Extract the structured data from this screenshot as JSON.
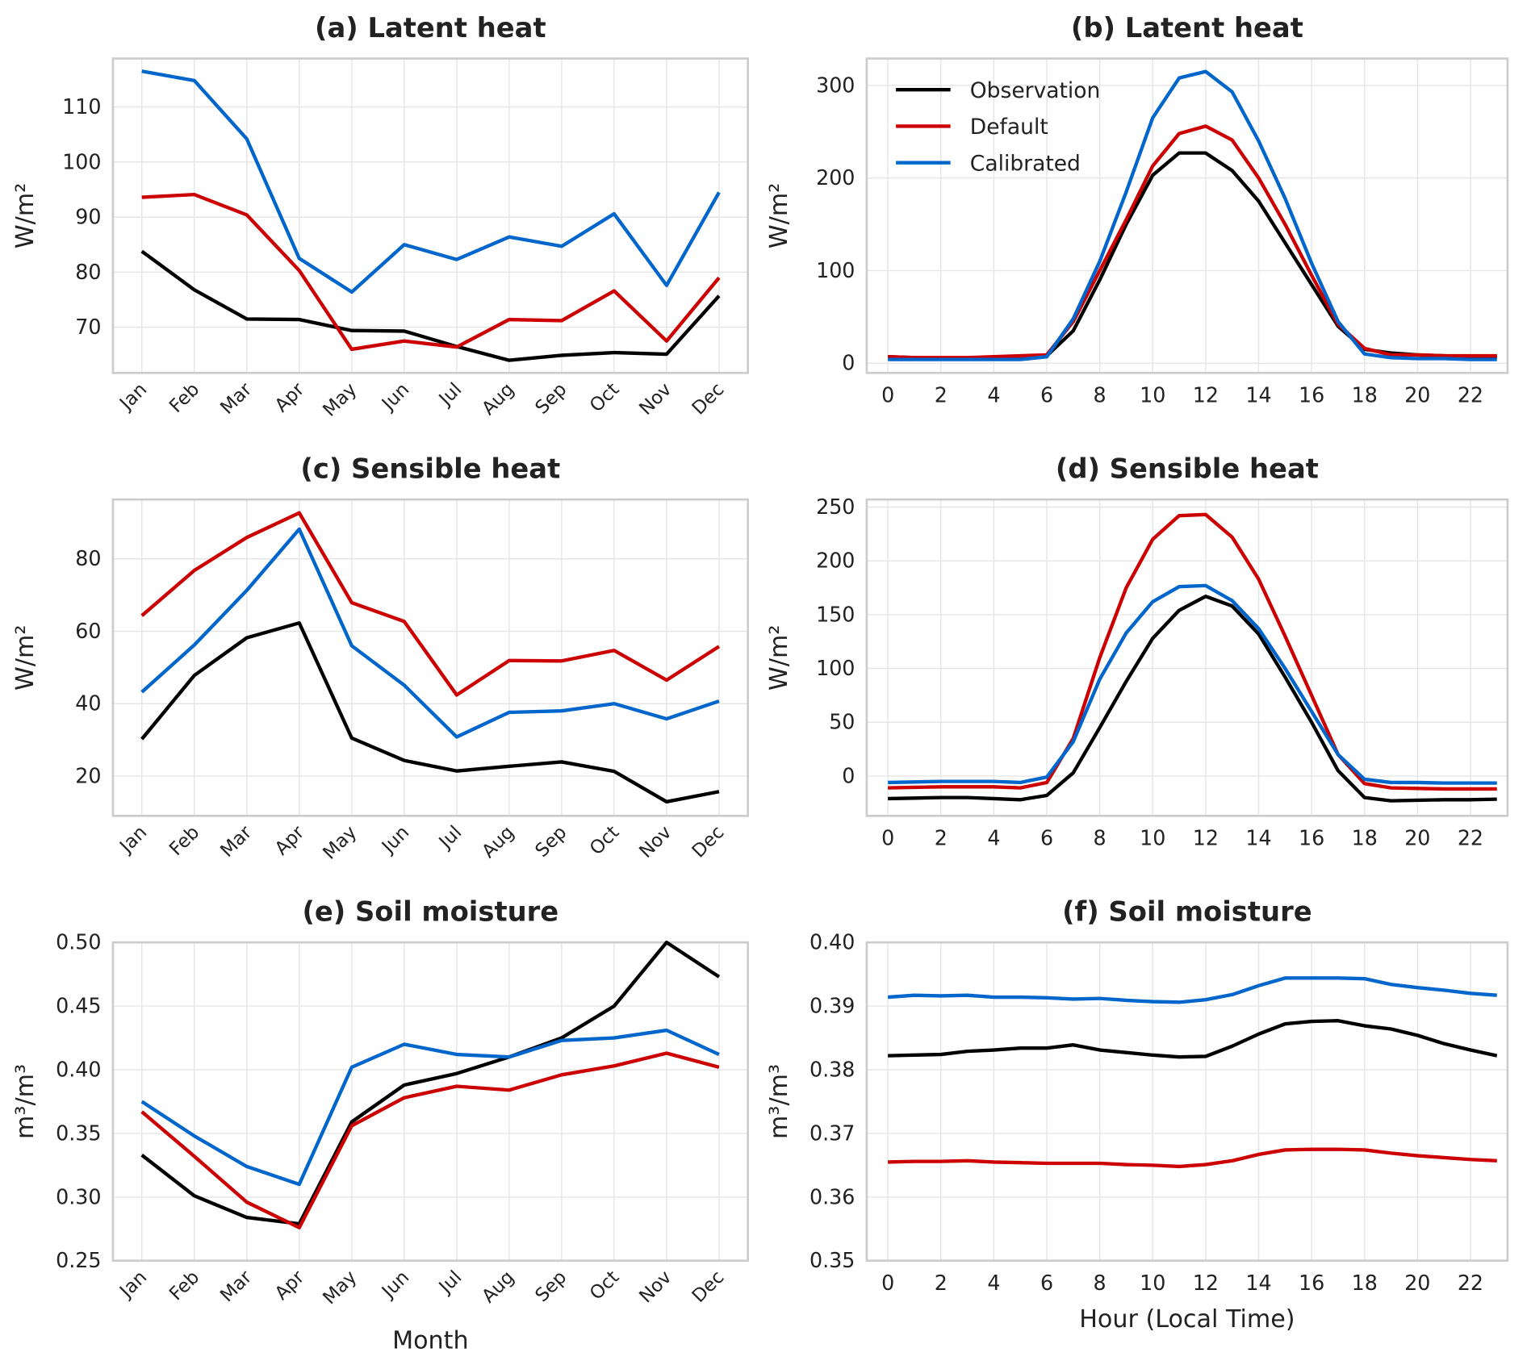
{
  "chart_data": [
    {
      "type": "line",
      "title": "(a) Latent heat",
      "ylabel": "W/m²",
      "categories": [
        "Jan",
        "Feb",
        "Mar",
        "Apr",
        "May",
        "Jun",
        "Jul",
        "Aug",
        "Sep",
        "Oct",
        "Nov",
        "Dec"
      ],
      "ylim": [
        61.7,
        118.8
      ],
      "yticks": [
        70,
        80,
        90,
        100,
        110
      ],
      "grid": true,
      "series": [
        {
          "color": "#000000",
          "values": [
            83.8,
            76.8,
            71.5,
            71.4,
            69.4,
            69.3,
            66.5,
            64.0,
            64.9,
            65.4,
            65.1,
            75.7
          ]
        },
        {
          "color": "#cc0000",
          "values": [
            93.6,
            94.1,
            90.4,
            80.3,
            66.0,
            67.5,
            66.4,
            71.4,
            71.2,
            76.6,
            67.5,
            79.0
          ]
        },
        {
          "color": "#0066cc",
          "values": [
            116.5,
            114.8,
            104.2,
            82.5,
            76.4,
            85.0,
            82.3,
            86.4,
            84.7,
            90.6,
            77.6,
            94.5
          ]
        }
      ]
    },
    {
      "type": "line",
      "title": "(b) Latent heat",
      "ylabel": "W/m²",
      "x": [
        0,
        1,
        2,
        3,
        4,
        5,
        6,
        7,
        8,
        9,
        10,
        11,
        12,
        13,
        14,
        15,
        16,
        17,
        18,
        19,
        20,
        21,
        22,
        23
      ],
      "xlim": [
        -0.8,
        23.4
      ],
      "xticks": [
        0,
        2,
        4,
        6,
        8,
        10,
        12,
        14,
        16,
        18,
        20,
        22
      ],
      "ylim": [
        -10.5,
        329
      ],
      "yticks": [
        0,
        100,
        200,
        300
      ],
      "grid": true,
      "legend": "upper left",
      "series": [
        {
          "name": "Observation",
          "color": "#000000",
          "values": [
            7,
            6,
            5,
            5,
            6,
            7,
            8,
            35,
            90,
            150,
            203,
            227,
            227,
            208,
            175,
            130,
            85,
            40,
            15,
            11,
            9,
            8,
            7,
            7
          ]
        },
        {
          "name": "Default",
          "color": "#cc0000",
          "values": [
            7,
            6,
            6,
            6,
            7,
            8,
            9,
            45,
            100,
            155,
            213,
            248,
            256,
            241,
            200,
            150,
            95,
            42,
            16,
            9,
            9,
            8,
            8,
            8
          ]
        },
        {
          "name": "Calibrated",
          "color": "#0066cc",
          "values": [
            4,
            4,
            4,
            4,
            4,
            4,
            7,
            48,
            110,
            185,
            265,
            308,
            315,
            293,
            240,
            178,
            108,
            45,
            10,
            6,
            5,
            5,
            4,
            4
          ]
        }
      ]
    },
    {
      "type": "line",
      "title": "(c) Sensible heat",
      "ylabel": "W/m²",
      "categories": [
        "Jan",
        "Feb",
        "Mar",
        "Apr",
        "May",
        "Jun",
        "Jul",
        "Aug",
        "Sep",
        "Oct",
        "Nov",
        "Dec"
      ],
      "ylim": [
        9,
        96.4
      ],
      "yticks": [
        20,
        40,
        60,
        80
      ],
      "grid": true,
      "series": [
        {
          "color": "#000000",
          "values": [
            30.2,
            47.8,
            58.2,
            62.3,
            30.5,
            24.3,
            21.4,
            22.7,
            23.9,
            21.3,
            12.9,
            15.7
          ]
        },
        {
          "color": "#cc0000",
          "values": [
            64.3,
            76.8,
            85.9,
            92.7,
            67.9,
            62.7,
            42.4,
            51.9,
            51.8,
            54.7,
            46.5,
            55.8
          ]
        },
        {
          "color": "#0066cc",
          "values": [
            43.2,
            56.2,
            71.3,
            88.2,
            56.0,
            45.1,
            30.8,
            37.6,
            38.0,
            40.0,
            35.8,
            40.7
          ]
        }
      ]
    },
    {
      "type": "line",
      "title": "(d) Sensible heat",
      "ylabel": "W/m²",
      "x": [
        0,
        1,
        2,
        3,
        4,
        5,
        6,
        7,
        8,
        9,
        10,
        11,
        12,
        13,
        14,
        15,
        16,
        17,
        18,
        19,
        20,
        21,
        22,
        23
      ],
      "xlim": [
        -0.8,
        23.4
      ],
      "xticks": [
        0,
        2,
        4,
        6,
        8,
        10,
        12,
        14,
        16,
        18,
        20,
        22
      ],
      "ylim": [
        -37,
        257
      ],
      "yticks": [
        0,
        50,
        100,
        150,
        200,
        250
      ],
      "grid": true,
      "series": [
        {
          "color": "#000000",
          "values": [
            -21,
            -20.5,
            -20,
            -20,
            -21,
            -22,
            -18,
            3,
            45,
            88,
            128,
            154,
            167,
            158,
            132,
            92,
            50,
            5,
            -20,
            -23,
            -22.5,
            -22,
            -22,
            -21.5
          ]
        },
        {
          "color": "#cc0000",
          "values": [
            -11,
            -10.5,
            -10,
            -10,
            -10,
            -11,
            -6,
            35,
            110,
            175,
            220,
            242,
            243,
            222,
            183,
            130,
            75,
            20,
            -7,
            -11,
            -11.5,
            -12,
            -12,
            -12
          ]
        },
        {
          "color": "#0066cc",
          "values": [
            -6,
            -5.5,
            -5,
            -5,
            -5,
            -6,
            -1,
            32,
            90,
            133,
            162,
            176,
            177,
            163,
            137,
            100,
            60,
            20,
            -3,
            -6,
            -6,
            -6.5,
            -6.5,
            -6.5
          ]
        }
      ]
    },
    {
      "type": "line",
      "title": "(e) Soil moisture",
      "ylabel": "m³/m³",
      "xlabel": "Month",
      "categories": [
        "Jan",
        "Feb",
        "Mar",
        "Apr",
        "May",
        "Jun",
        "Jul",
        "Aug",
        "Sep",
        "Oct",
        "Nov",
        "Dec"
      ],
      "ylim": [
        0.25,
        0.5
      ],
      "yticks": [
        {
          "value": 0.25,
          "label": "0.25"
        },
        {
          "value": 0.3,
          "label": "0.30"
        },
        {
          "value": 0.35,
          "label": "0.35"
        },
        {
          "value": 0.4,
          "label": "0.40"
        },
        {
          "value": 0.45,
          "label": "0.45"
        },
        {
          "value": 0.5,
          "label": "0.50"
        }
      ],
      "grid": true,
      "series": [
        {
          "color": "#000000",
          "values": [
            0.333,
            0.301,
            0.284,
            0.279,
            0.359,
            0.388,
            0.397,
            0.41,
            0.425,
            0.45,
            0.5,
            0.473
          ]
        },
        {
          "color": "#cc0000",
          "values": [
            0.367,
            0.332,
            0.296,
            0.276,
            0.356,
            0.378,
            0.387,
            0.384,
            0.396,
            0.403,
            0.413,
            0.402
          ]
        },
        {
          "color": "#0066cc",
          "values": [
            0.375,
            0.348,
            0.324,
            0.31,
            0.402,
            0.42,
            0.412,
            0.41,
            0.423,
            0.425,
            0.431,
            0.412
          ]
        }
      ]
    },
    {
      "type": "line",
      "title": "(f) Soil moisture",
      "ylabel": "m³/m³",
      "xlabel": "Hour (Local Time)",
      "x": [
        0,
        1,
        2,
        3,
        4,
        5,
        6,
        7,
        8,
        9,
        10,
        11,
        12,
        13,
        14,
        15,
        16,
        17,
        18,
        19,
        20,
        21,
        22,
        23
      ],
      "xlim": [
        -0.8,
        23.4
      ],
      "xticks": [
        0,
        2,
        4,
        6,
        8,
        10,
        12,
        14,
        16,
        18,
        20,
        22
      ],
      "ylim": [
        0.35,
        0.4
      ],
      "yticks": [
        0.35,
        0.36,
        0.37,
        0.38,
        0.39,
        {
          "value": 0.4,
          "label": "0.40"
        }
      ],
      "grid": true,
      "series": [
        {
          "color": "#000000",
          "values": [
            0.3822,
            0.3823,
            0.3824,
            0.3829,
            0.3831,
            0.3834,
            0.3834,
            0.3839,
            0.3831,
            0.3827,
            0.3823,
            0.382,
            0.3821,
            0.3837,
            0.3856,
            0.3872,
            0.3876,
            0.3877,
            0.3869,
            0.3864,
            0.3854,
            0.3841,
            0.3831,
            0.3822
          ]
        },
        {
          "color": "#cc0000",
          "values": [
            0.3655,
            0.3656,
            0.3656,
            0.3657,
            0.3655,
            0.3654,
            0.3653,
            0.3653,
            0.3653,
            0.3651,
            0.365,
            0.3648,
            0.3651,
            0.3657,
            0.3667,
            0.3674,
            0.3675,
            0.3675,
            0.3674,
            0.3669,
            0.3665,
            0.3662,
            0.3659,
            0.3657
          ]
        },
        {
          "color": "#0066cc",
          "values": [
            0.3914,
            0.3917,
            0.3916,
            0.3917,
            0.3914,
            0.3914,
            0.3913,
            0.3911,
            0.3912,
            0.3909,
            0.3907,
            0.3906,
            0.391,
            0.3918,
            0.3932,
            0.3944,
            0.3944,
            0.3944,
            0.3943,
            0.3934,
            0.3929,
            0.3925,
            0.392,
            0.3917
          ]
        }
      ]
    }
  ]
}
